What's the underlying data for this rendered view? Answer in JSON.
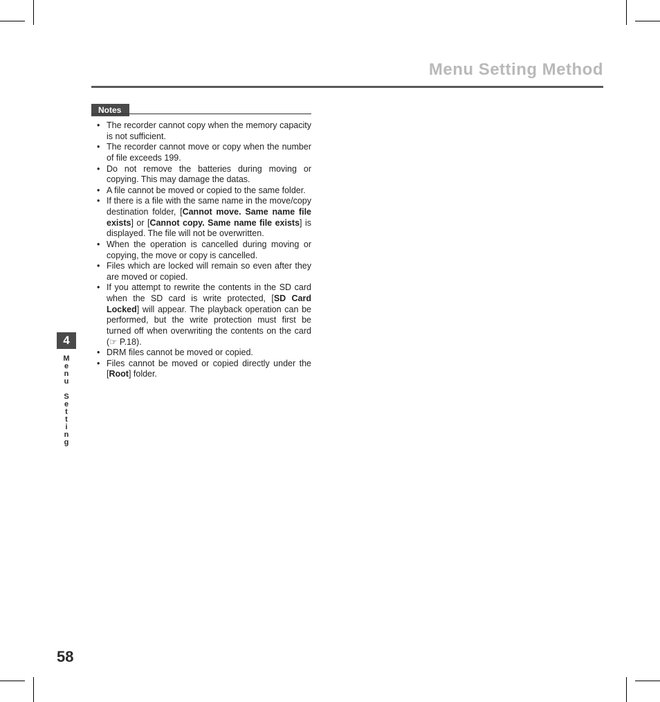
{
  "header": {
    "title": "Menu Setting Method"
  },
  "notes": {
    "label": "Notes",
    "items": [
      {
        "pre": "The recorder cannot copy when the memory capacity is not sufficient."
      },
      {
        "pre": "The recorder cannot move or copy when the number of file exceeds 199."
      },
      {
        "pre": "Do not remove the batteries during moving or copying. This may damage the datas."
      },
      {
        "pre": "A file cannot be moved or copied to the same folder."
      },
      {
        "pre": "If there is a file with the same name in the move/copy destination folder, [",
        "b1": "Cannot move. Same name file exists",
        "mid1": "] or [",
        "b2": "Cannot copy. Same name file exists",
        "post": "] is displayed. The file will not be overwritten."
      },
      {
        "pre": "When the operation is cancelled during moving or copying, the move or copy is cancelled."
      },
      {
        "pre": "Files which are locked will remain so even after they are moved or copied."
      },
      {
        "pre": "If you attempt to rewrite the contents in the SD card when the SD card is write protected, [",
        "b1": "SD Card Locked",
        "post": "] will appear. The playback operation can be performed, but the write protection must first be turned off when overwriting the contents on the card (☞ P.18)."
      },
      {
        "pre": "DRM files cannot be moved or copied."
      },
      {
        "pre": "Files cannot be moved or copied directly under the [",
        "b1": "Root",
        "post": "] folder."
      }
    ]
  },
  "sidebar": {
    "chapter": "4",
    "label": "Menu Setting"
  },
  "page_number": "58",
  "colors": {
    "muted_title": "#b9b9b9",
    "rule": "#5a5a5a",
    "tab_bg": "#4a4a4a",
    "text": "#222222"
  }
}
